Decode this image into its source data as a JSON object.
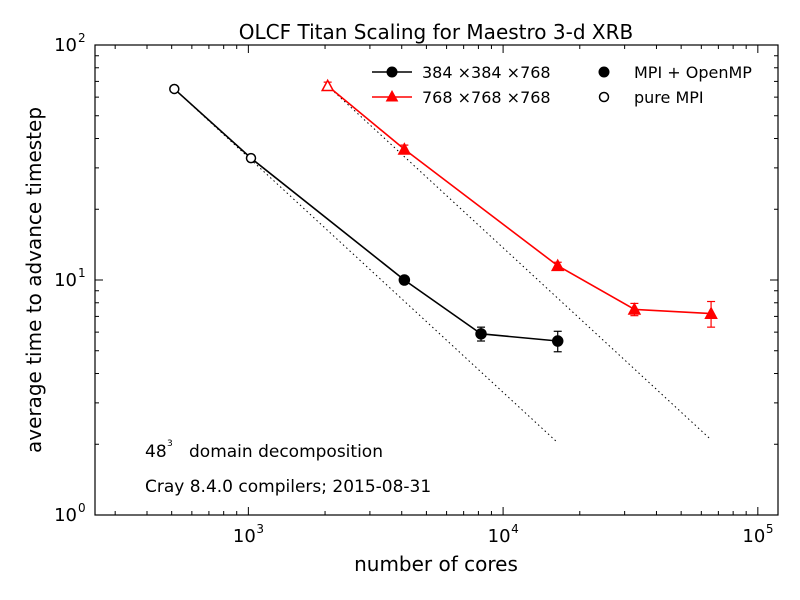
{
  "chart_data": {
    "type": "line",
    "title": "OLCF Titan Scaling for Maestro 3-d XRB",
    "xlabel": "number of cores",
    "ylabel": "average time to advance timestep",
    "xscale": "log",
    "yscale": "log",
    "xlim": [
      250,
      120000
    ],
    "ylim": [
      1,
      100
    ],
    "xticks": [
      {
        "value": 1000,
        "base": "10",
        "exp": "3"
      },
      {
        "value": 10000,
        "base": "10",
        "exp": "4"
      },
      {
        "value": 100000,
        "base": "10",
        "exp": "5"
      }
    ],
    "yticks": [
      {
        "value": 1,
        "base": "10",
        "exp": "0"
      },
      {
        "value": 10,
        "base": "10",
        "exp": "1"
      },
      {
        "value": 100,
        "base": "10",
        "exp": "2"
      }
    ],
    "grid": false,
    "legend_placement": "top-right",
    "series": [
      {
        "name": "384 ×384 ×768",
        "color": "#000000",
        "marker": "circle",
        "points": [
          {
            "x": 512,
            "y": 65.0,
            "err": 0.8,
            "mode": "pure MPI"
          },
          {
            "x": 1024,
            "y": 33.0,
            "err": 0.5,
            "mode": "pure MPI"
          },
          {
            "x": 4096,
            "y": 10.0,
            "err": 0.2,
            "mode": "MPI + OpenMP"
          },
          {
            "x": 8192,
            "y": 5.9,
            "err": 0.4,
            "mode": "MPI + OpenMP"
          },
          {
            "x": 16384,
            "y": 5.5,
            "err": 0.55,
            "mode": "MPI + OpenMP"
          }
        ],
        "ideal": {
          "x": [
            512,
            16384
          ],
          "y": [
            65.0,
            2.03
          ]
        }
      },
      {
        "name": "768 ×768 ×768",
        "color": "#ff0000",
        "marker": "triangle",
        "points": [
          {
            "x": 2048,
            "y": 67.0,
            "err": 2.5,
            "mode": "pure MPI"
          },
          {
            "x": 4096,
            "y": 36.0,
            "err": 1.5,
            "mode": "MPI + OpenMP"
          },
          {
            "x": 16384,
            "y": 11.5,
            "err": 0.4,
            "mode": "MPI + OpenMP"
          },
          {
            "x": 32768,
            "y": 7.5,
            "err": 0.45,
            "mode": "MPI + OpenMP"
          },
          {
            "x": 65536,
            "y": 7.2,
            "err": 0.9,
            "mode": "MPI + OpenMP"
          }
        ],
        "ideal": {
          "x": [
            2048,
            65536
          ],
          "y": [
            67.0,
            2.09
          ]
        }
      }
    ],
    "legend": {
      "series": [
        "384 ×384 ×768",
        "768 ×768 ×768"
      ],
      "markers": [
        {
          "label": "MPI + OpenMP",
          "fill": "filled"
        },
        {
          "label": "pure MPI",
          "fill": "open"
        }
      ]
    },
    "annotations": {
      "decomp_base": "48",
      "decomp_exp": "3",
      "decomp_text": "domain decomposition",
      "compiler_text": "Cray 8.4.0 compilers; 2015-08-31"
    }
  }
}
